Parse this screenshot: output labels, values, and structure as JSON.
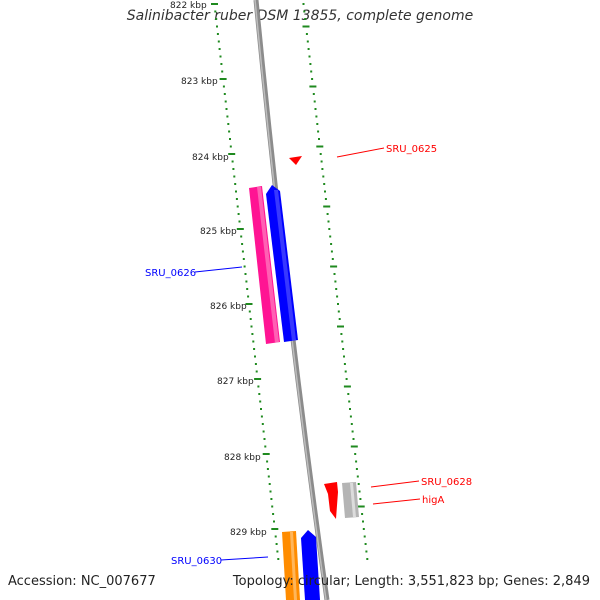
{
  "title": "Salinibacter ruber DSM 13855, complete genome",
  "footer": {
    "accession": "Accession: NC_007677",
    "stats": "Topology: circular; Length: 3,551,823 bp; Genes: 2,849"
  },
  "colors": {
    "backbone": "#8c8c8c",
    "dots": "#1f8a1f",
    "red": "#ff0000",
    "blue": "#0000ff",
    "magenta": "#ff1493",
    "orange": "#ff8c00",
    "gray": "#b4b4b4"
  },
  "ticks": [
    "822 kbp",
    "823 kbp",
    "824 kbp",
    "825 kbp",
    "826 kbp",
    "827 kbp",
    "828 kbp",
    "829 kbp"
  ],
  "genes": [
    {
      "name": "SRU_0625",
      "color": "#ff0000",
      "labeled": true
    },
    {
      "name": "SRU_0626",
      "color": "#0000ff",
      "labeled": true
    },
    {
      "name": "",
      "color": "#ff1493",
      "labeled": false
    },
    {
      "name": "SRU_0628",
      "color": "#ff0000",
      "labeled": true
    },
    {
      "name": "higA",
      "color": "#ff0000",
      "labeled": true
    },
    {
      "name": "",
      "color": "#b4b4b4",
      "labeled": false
    },
    {
      "name": "SRU_0630",
      "color": "#0000ff",
      "labeled": true
    },
    {
      "name": "",
      "color": "#ff8c00",
      "labeled": false
    }
  ]
}
